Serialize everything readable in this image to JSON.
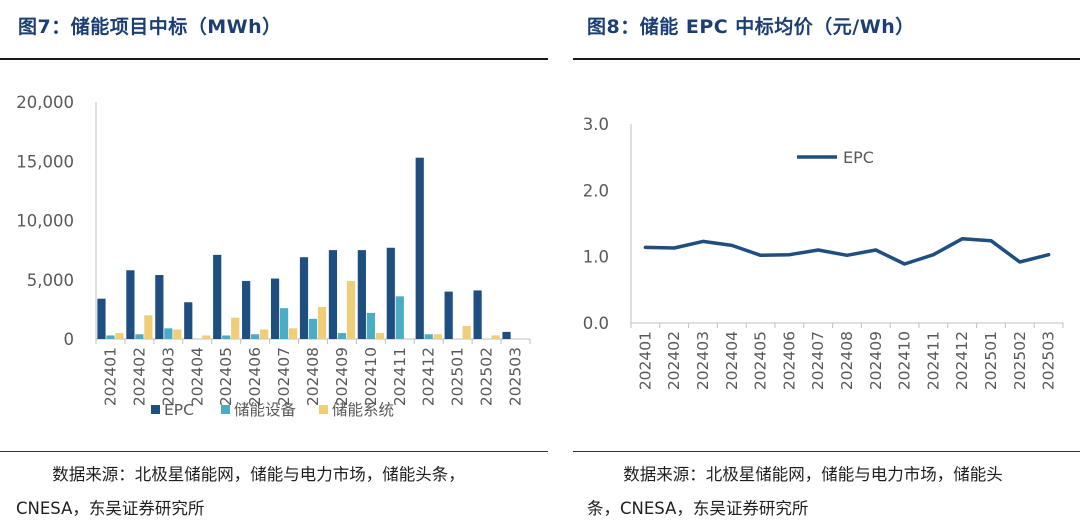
{
  "left": {
    "title": "图7：储能项目中标（MWh）",
    "source": "数据来源：北极星储能网，储能与电力市场，储能头条，CNESA，东吴证券研究所"
  },
  "right": {
    "title": "图8：储能 EPC 中标均价（元/Wh）",
    "source": "数据来源：北极星储能网，储能与电力市场，储能头条，CNESA，东吴证券研究所"
  },
  "colors": {
    "epc": "#1f4e80",
    "equipment": "#4bacc6",
    "system": "#f0ce78",
    "axis": "#bfbfbf",
    "text": "#595959"
  },
  "chart_data": [
    {
      "type": "bar",
      "categories": [
        "202401",
        "202402",
        "202403",
        "202404",
        "202405",
        "202406",
        "202407",
        "202408",
        "202409",
        "202410",
        "202411",
        "202412",
        "202501",
        "202502",
        "202503"
      ],
      "series": [
        {
          "name": "EPC",
          "values": [
            3400,
            5800,
            5400,
            3100,
            7100,
            4900,
            5100,
            6900,
            7500,
            7500,
            7700,
            15300,
            4000,
            4100,
            600
          ]
        },
        {
          "name": "储能设备",
          "values": [
            300,
            400,
            900,
            0,
            300,
            400,
            2600,
            1700,
            500,
            2200,
            3600,
            400,
            0,
            0,
            0
          ]
        },
        {
          "name": "储能系统",
          "values": [
            500,
            2000,
            800,
            300,
            1800,
            800,
            900,
            2700,
            4900,
            500,
            0,
            400,
            1100,
            300,
            0
          ]
        }
      ],
      "yticks": [
        "0",
        "5,000",
        "10,000",
        "15,000",
        "20,000"
      ],
      "ylim": [
        0,
        20000
      ],
      "legend": "bottom"
    },
    {
      "type": "line",
      "categories": [
        "202401",
        "202402",
        "202403",
        "202404",
        "202405",
        "202406",
        "202407",
        "202408",
        "202409",
        "202410",
        "202411",
        "202412",
        "202501",
        "202502",
        "202503"
      ],
      "series": [
        {
          "name": "EPC",
          "values": [
            1.14,
            1.13,
            1.23,
            1.17,
            1.02,
            1.03,
            1.1,
            1.02,
            1.1,
            0.89,
            1.03,
            1.27,
            1.24,
            0.92,
            1.03
          ]
        }
      ],
      "yticks": [
        "0.0",
        "1.0",
        "2.0",
        "3.0"
      ],
      "ylim": [
        0,
        3
      ],
      "legend": "top-center"
    }
  ]
}
